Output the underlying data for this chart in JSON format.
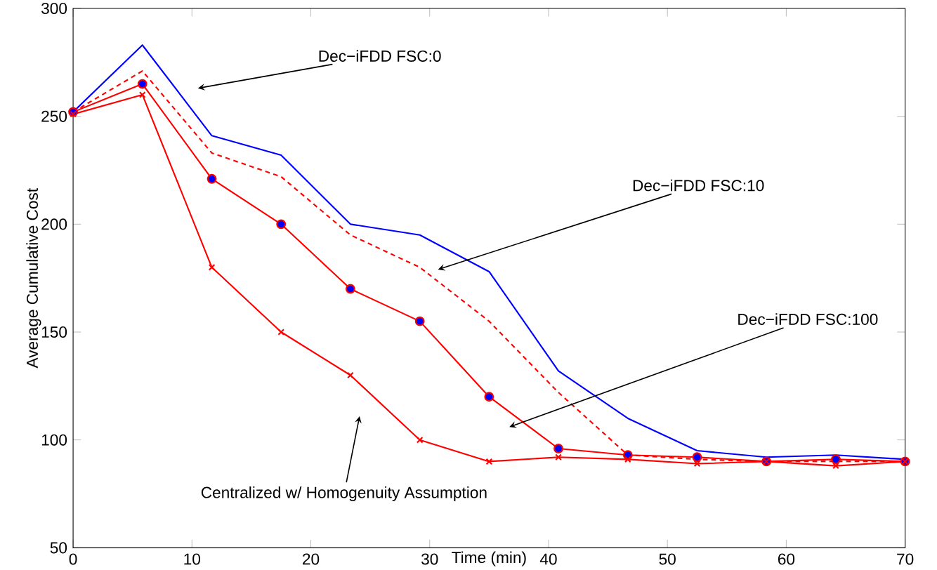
{
  "chart_data": {
    "type": "line",
    "xlabel": "Time (min)",
    "ylabel": "Average Cumulative Cost",
    "x": [
      0,
      5.83,
      11.67,
      17.5,
      23.33,
      29.17,
      35,
      40.83,
      46.67,
      52.5,
      58.33,
      64.17,
      70
    ],
    "xlim": [
      0,
      70
    ],
    "ylim": [
      50,
      300
    ],
    "xticks": [
      0,
      10,
      20,
      30,
      40,
      50,
      60,
      70
    ],
    "yticks": [
      50,
      100,
      150,
      200,
      250,
      300
    ],
    "series": [
      {
        "color": "#0000ff",
        "line_style": "solid",
        "marker": "none",
        "values": [
          252,
          283,
          241,
          232,
          200,
          195,
          178,
          132,
          110,
          95,
          92,
          93,
          91
        ]
      },
      {
        "color": "#ff0000",
        "line_style": "dashed",
        "marker": "none",
        "values": [
          252,
          271,
          233,
          222,
          195,
          180,
          155,
          122,
          93,
          91,
          90,
          90,
          90
        ]
      },
      {
        "color": "#ff0000",
        "line_style": "solid",
        "marker": "circle",
        "values": [
          252,
          265,
          221,
          200,
          170,
          155,
          120,
          96,
          93,
          92,
          90,
          91,
          90
        ]
      },
      {
        "color": "#ff0000",
        "line_style": "solid",
        "marker": "cross",
        "values": [
          251,
          260,
          180,
          150,
          130,
          100,
          90,
          92,
          91,
          89,
          90,
          88,
          90
        ]
      }
    ],
    "annotations": [
      "Dec−iFDD FSC:0",
      "Dec−iFDD FSC:10",
      "Dec−iFDD FSC:100",
      "Centralized w/ Homogenuity Assumption"
    ]
  }
}
